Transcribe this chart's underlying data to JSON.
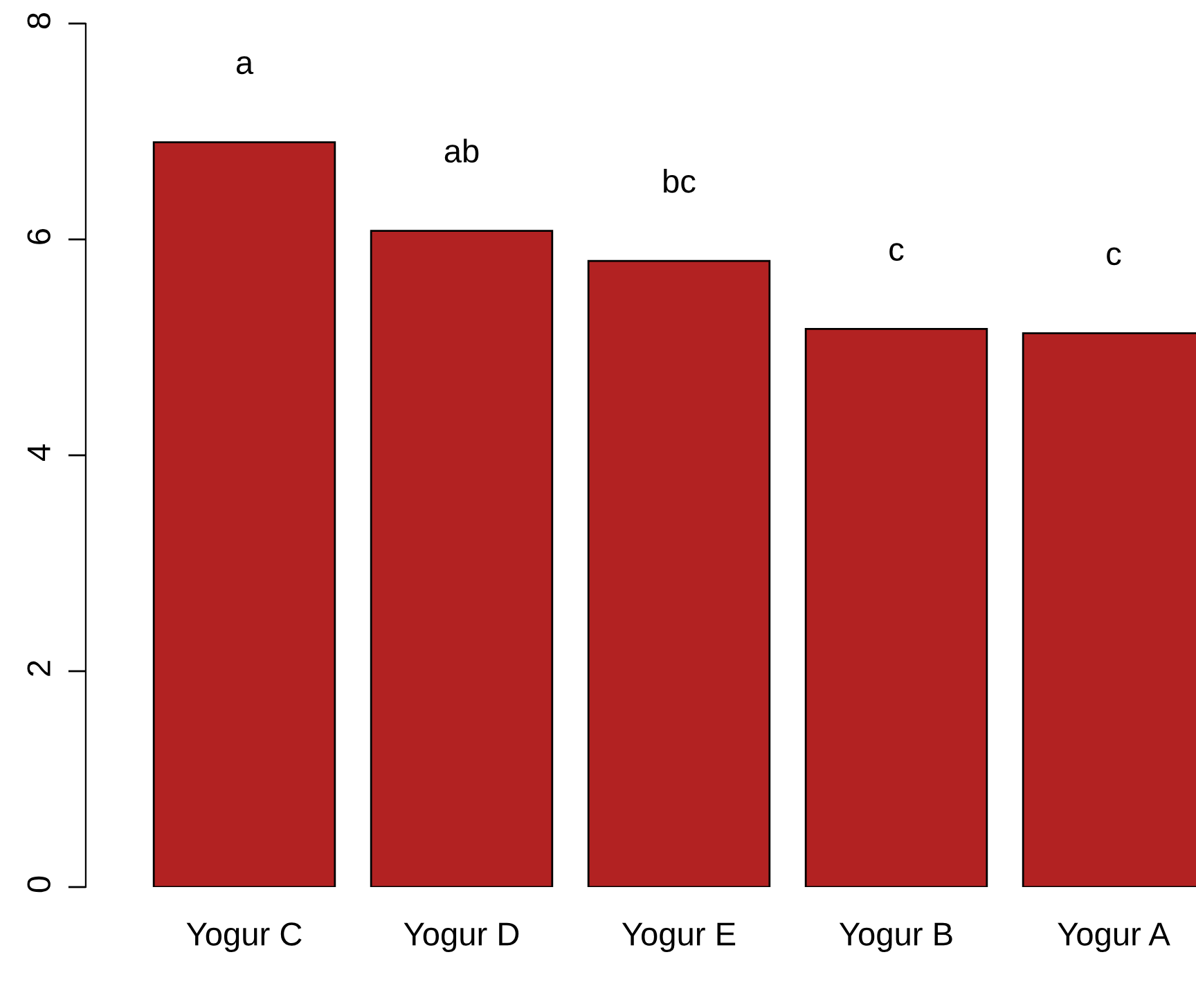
{
  "chart_data": {
    "type": "bar",
    "categories": [
      "Yogur C",
      "Yogur D",
      "Yogur E",
      "Yogur B",
      "Yogur A"
    ],
    "values": [
      6.9,
      6.08,
      5.8,
      5.17,
      5.13
    ],
    "color": "#b22222",
    "ylim": [
      0,
      8
    ],
    "yticks": [
      0,
      2,
      4,
      6,
      8
    ],
    "annotations": [
      "a",
      "ab",
      "bc",
      "c",
      "c"
    ]
  }
}
